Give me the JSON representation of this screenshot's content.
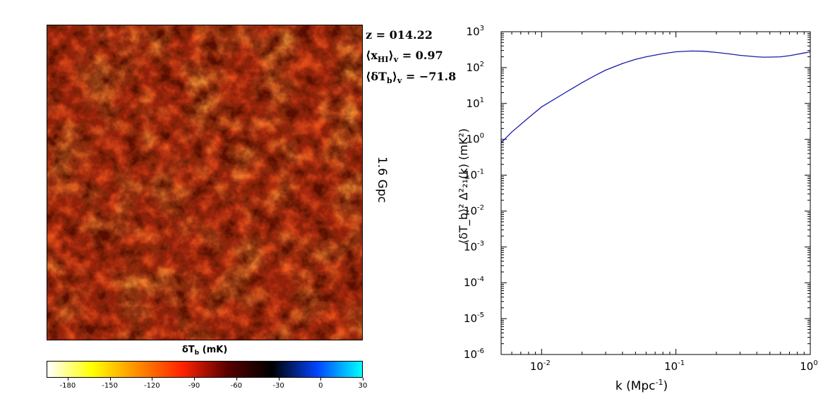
{
  "map": {
    "stats": {
      "redshift": "z = 014.22",
      "xhi_prefix": "⟨x",
      "xhi_sub": "HI",
      "xhi_suffix": "⟩",
      "xhi_v": "v",
      "xhi_value": " = 0.97",
      "dtb_prefix": "⟨δT",
      "dtb_sub": "b",
      "dtb_suffix": "⟩",
      "dtb_v": "v",
      "dtb_value": " = −71.8"
    },
    "scale_label": "1.6 Gpc",
    "colorbar": {
      "title_main": "δT",
      "title_sub": "b",
      "title_unit": " (mK)",
      "ticks": [
        -180,
        -150,
        -120,
        -90,
        -60,
        -30,
        0,
        30
      ],
      "range": [
        -195,
        30
      ],
      "colors": [
        "#ffffff",
        "#ffff00",
        "#ff8c00",
        "#ff2200",
        "#5a0000",
        "#000000",
        "#0044ff",
        "#00ffff"
      ]
    }
  },
  "chart_data": {
    "type": "line",
    "title": "",
    "xlabel": "k  (Mpc",
    "xlabel_sup": "-1",
    "xlabel_end": ")",
    "ylabel": "⟨δT_b⟩² Δ²₂₁(k) (mK²)",
    "xscale": "log",
    "yscale": "log",
    "xlim": [
      0.005,
      1.0
    ],
    "ylim": [
      1e-06,
      1000.0
    ],
    "x_ticks": [
      {
        "base": "10",
        "exp": "-2",
        "value": 0.01
      },
      {
        "base": "10",
        "exp": "-1",
        "value": 0.1
      },
      {
        "base": "10",
        "exp": "0",
        "value": 1
      }
    ],
    "y_ticks": [
      {
        "base": "10",
        "exp": "-6",
        "value": 1e-06
      },
      {
        "base": "10",
        "exp": "-5",
        "value": 1e-05
      },
      {
        "base": "10",
        "exp": "-4",
        "value": 0.0001
      },
      {
        "base": "10",
        "exp": "-3",
        "value": 0.001
      },
      {
        "base": "10",
        "exp": "-2",
        "value": 0.01
      },
      {
        "base": "10",
        "exp": "-1",
        "value": 0.1
      },
      {
        "base": "10",
        "exp": "0",
        "value": 1
      },
      {
        "base": "10",
        "exp": "1",
        "value": 10
      },
      {
        "base": "10",
        "exp": "2",
        "value": 100
      },
      {
        "base": "10",
        "exp": "3",
        "value": 1000
      }
    ],
    "grid": false,
    "series": [
      {
        "color": "#1a1aa8",
        "x": [
          0.005,
          0.006,
          0.008,
          0.01,
          0.015,
          0.02,
          0.025,
          0.03,
          0.04,
          0.05,
          0.06,
          0.08,
          0.1,
          0.13,
          0.16,
          0.2,
          0.25,
          0.3,
          0.4,
          0.45,
          0.5,
          0.6,
          0.7,
          0.8,
          0.9,
          1.0
        ],
        "y": [
          0.8,
          1.6,
          4.0,
          8.0,
          20,
          38,
          60,
          85,
          130,
          170,
          200,
          245,
          275,
          290,
          285,
          265,
          240,
          220,
          200,
          195,
          196,
          200,
          215,
          235,
          255,
          275
        ]
      }
    ]
  }
}
